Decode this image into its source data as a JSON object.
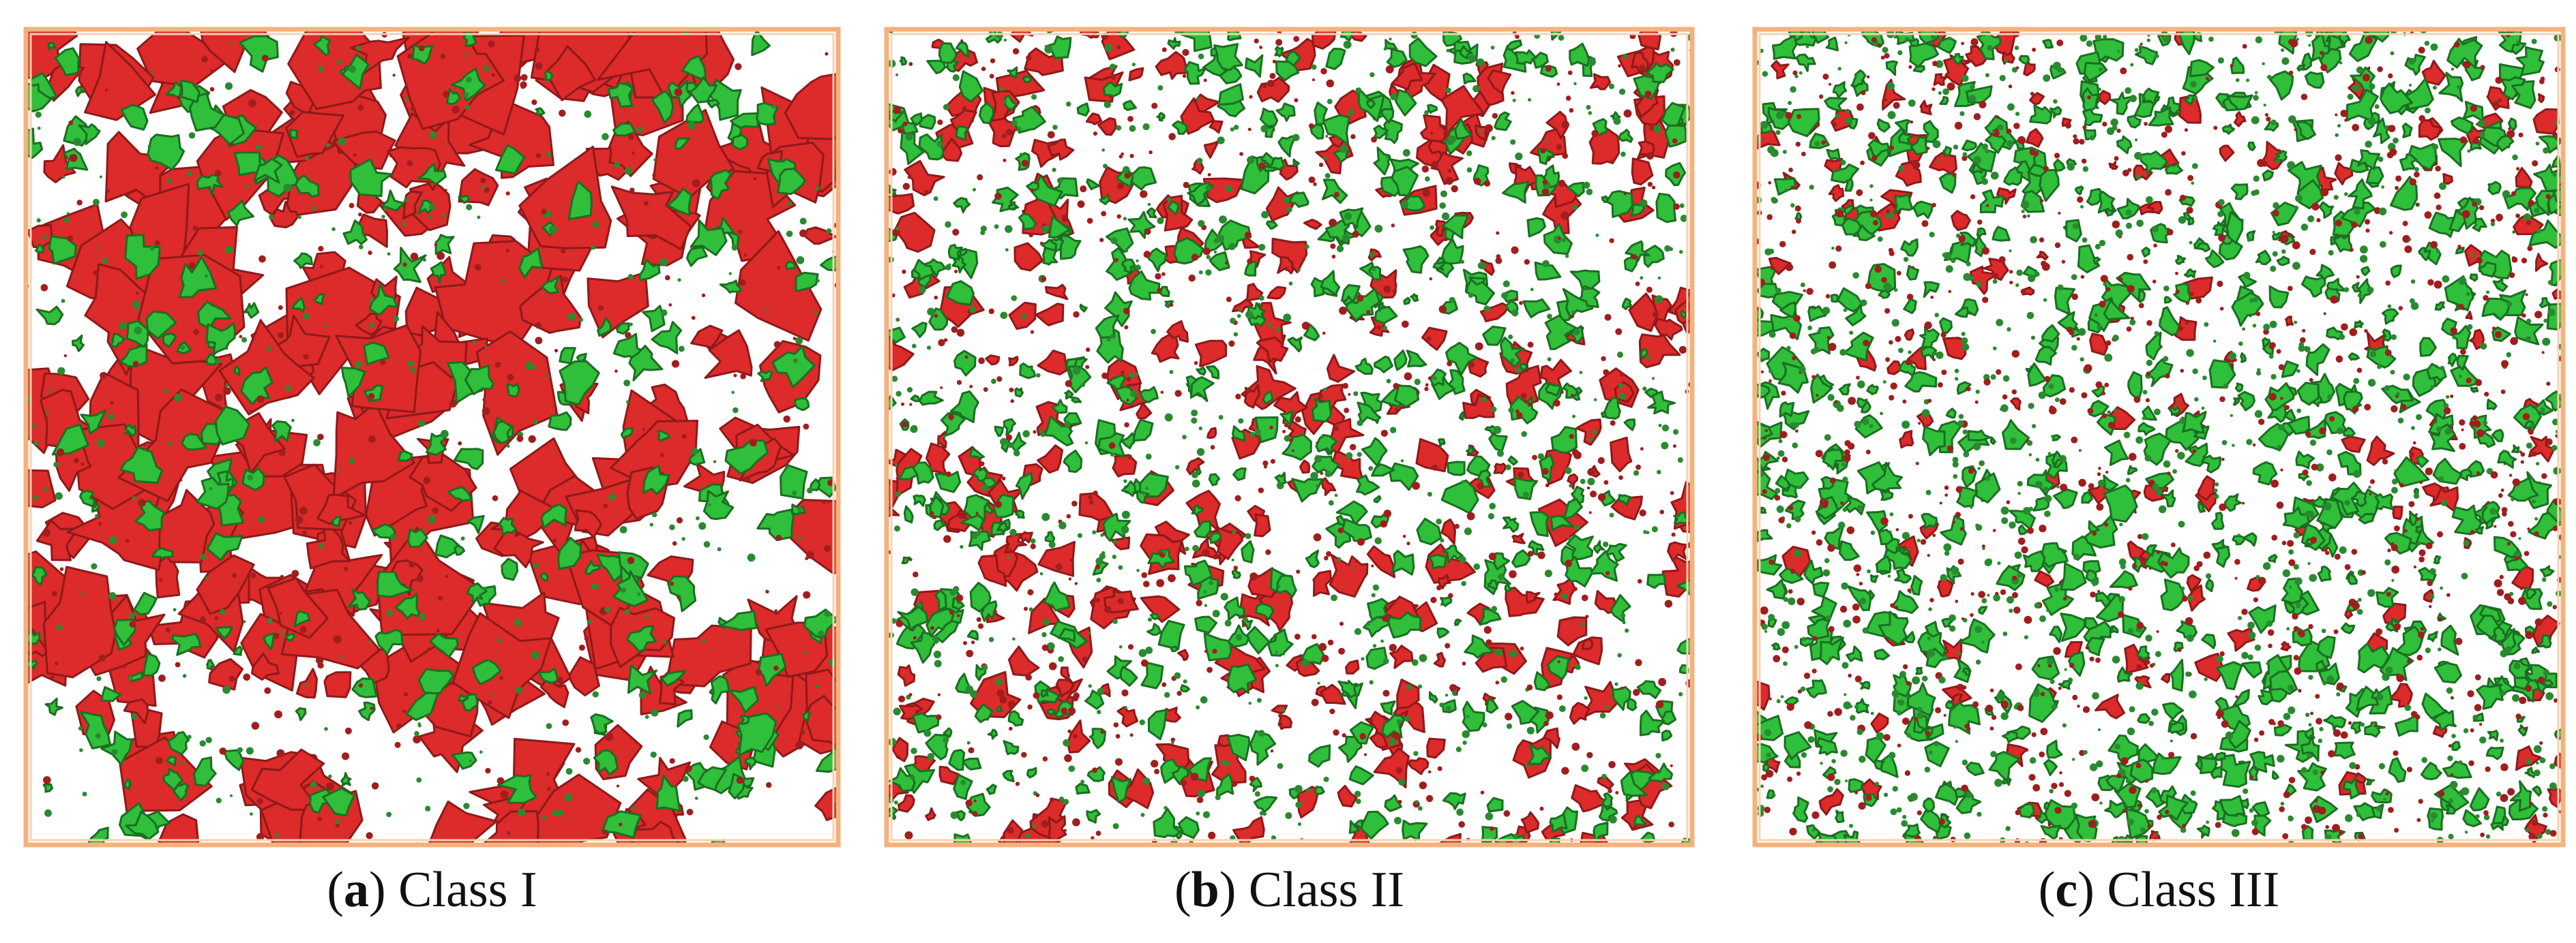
{
  "panels": [
    {
      "open": "(",
      "letter": "a",
      "close": ")",
      "caption": "Class I"
    },
    {
      "open": "(",
      "letter": "b",
      "close": ")",
      "caption": "Class II"
    },
    {
      "open": "(",
      "letter": "c",
      "close": ")",
      "caption": "Class III"
    }
  ]
}
